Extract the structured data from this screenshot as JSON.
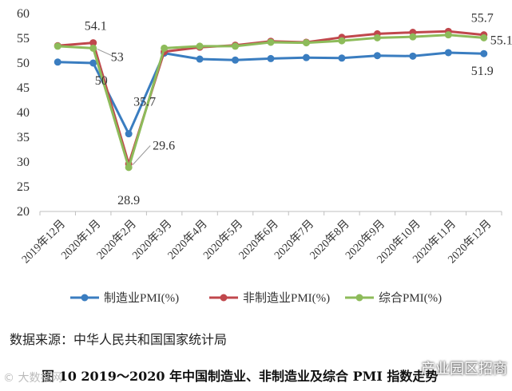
{
  "chart_data": {
    "type": "line",
    "categories": [
      "2019年12月",
      "2020年1月",
      "2020年2月",
      "2020年3月",
      "2020年4月",
      "2020年5月",
      "2020年6月",
      "2020年7月",
      "2020年8月",
      "2020年9月",
      "2020年10月",
      "2020年11月",
      "2020年12月"
    ],
    "ylim": [
      20,
      60
    ],
    "yticks": [
      "20",
      "25",
      "30",
      "35",
      "40",
      "45",
      "50",
      "55",
      "60"
    ],
    "legend_position": "bottom",
    "grid": false,
    "series": [
      {
        "name": "制造业PMI(%)",
        "color": "#3a7dc0",
        "values": [
          50.2,
          50.0,
          35.7,
          52.0,
          50.8,
          50.6,
          50.9,
          51.1,
          51.0,
          51.5,
          51.4,
          52.1,
          51.9
        ]
      },
      {
        "name": "非制造业PMI(%)",
        "color": "#c0474c",
        "values": [
          53.5,
          54.1,
          29.6,
          52.3,
          53.2,
          53.6,
          54.4,
          54.2,
          55.2,
          55.9,
          56.2,
          56.4,
          55.7
        ]
      },
      {
        "name": "综合PMI(%)",
        "color": "#8dbb5a",
        "values": [
          53.4,
          53.0,
          28.9,
          53.0,
          53.4,
          53.4,
          54.2,
          54.1,
          54.5,
          55.1,
          55.3,
          55.7,
          55.1
        ]
      }
    ],
    "annotations": [
      {
        "text": "54.1",
        "series": 1,
        "index": 1
      },
      {
        "text": "53",
        "series": 2,
        "index": 1
      },
      {
        "text": "50",
        "series": 0,
        "index": 1
      },
      {
        "text": "35.7",
        "series": 0,
        "index": 2
      },
      {
        "text": "29.6",
        "series": 1,
        "index": 2
      },
      {
        "text": "28.9",
        "series": 2,
        "index": 2
      },
      {
        "text": "55.7",
        "series": 1,
        "index": 12
      },
      {
        "text": "55.1",
        "series": 2,
        "index": 12
      },
      {
        "text": "51.9",
        "series": 0,
        "index": 12
      }
    ]
  },
  "source_text": "数据来源：中华人民共和国国家统计局",
  "caption": "图 10    2019～2020 年中国制造业、非制造业及综合 PMI 指数走势",
  "watermark_left": "© 大数据网",
  "watermark_right": "产业园区招商"
}
